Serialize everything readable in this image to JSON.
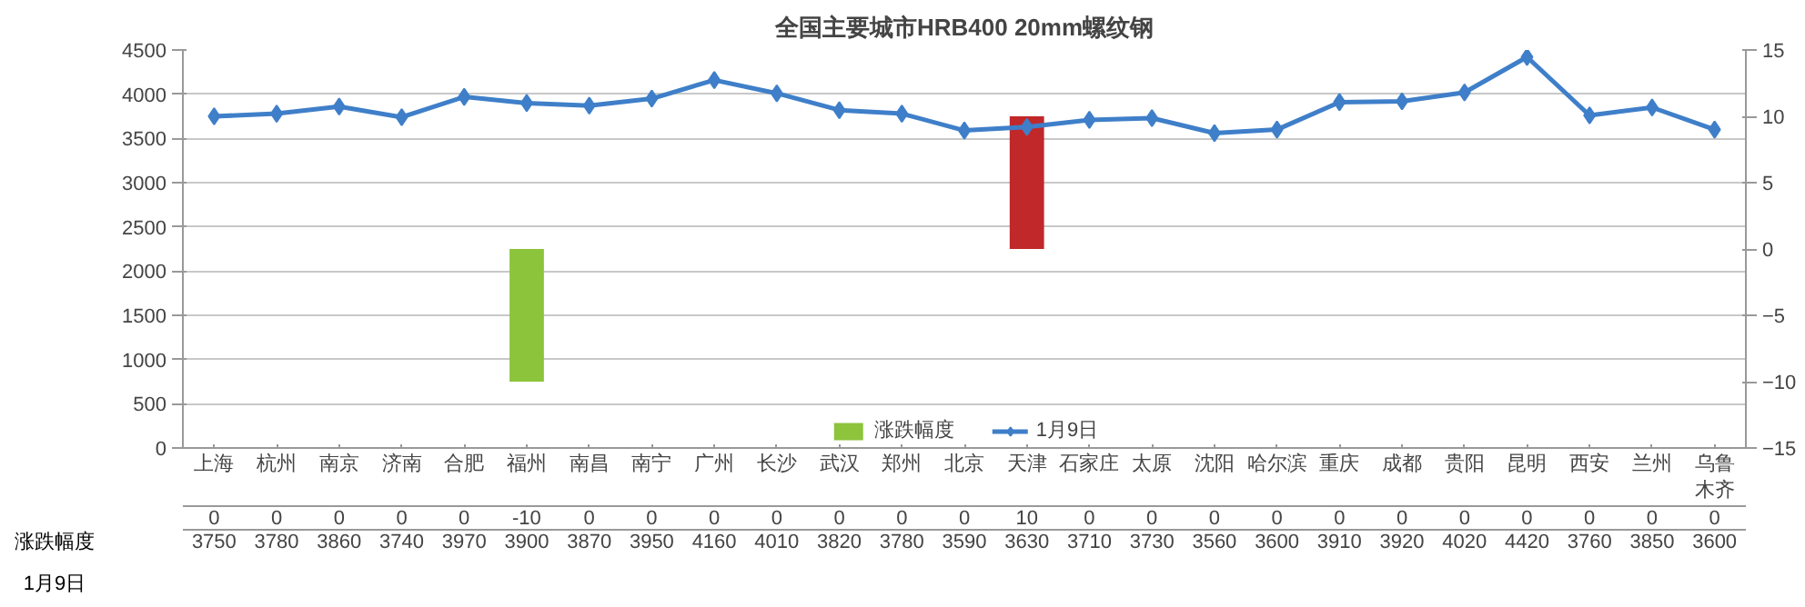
{
  "chart_data": {
    "type": "bar",
    "title": "全国主要城市HRB400 20mm螺纹钢",
    "categories": [
      "上海",
      "杭州",
      "南京",
      "济南",
      "合肥",
      "福州",
      "南昌",
      "南宁",
      "广州",
      "长沙",
      "武汉",
      "郑州",
      "北京",
      "天津",
      "石家庄",
      "太原",
      "沈阳",
      "哈尔滨",
      "重庆",
      "成都",
      "贵阳",
      "昆明",
      "西安",
      "兰州",
      "乌鲁木齐"
    ],
    "series": [
      {
        "name": "涨跌幅度",
        "axis": "y2",
        "color": "#8cc43c",
        "colors": [
          "#8cc43c",
          "#8cc43c",
          "#8cc43c",
          "#8cc43c",
          "#8cc43c",
          "#8cc43c",
          "#8cc43c",
          "#8cc43c",
          "#8cc43c",
          "#8cc43c",
          "#8cc43c",
          "#8cc43c",
          "#8cc43c",
          "#c0282a",
          "#8cc43c",
          "#8cc43c",
          "#8cc43c",
          "#8cc43c",
          "#8cc43c",
          "#8cc43c",
          "#8cc43c",
          "#8cc43c",
          "#8cc43c",
          "#8cc43c",
          "#8cc43c"
        ],
        "values": [
          0,
          0,
          0,
          0,
          0,
          -10,
          0,
          0,
          0,
          0,
          0,
          0,
          0,
          10,
          0,
          0,
          0,
          0,
          0,
          0,
          0,
          0,
          0,
          0,
          0
        ]
      },
      {
        "name": "1月9日",
        "type": "line",
        "color": "#3f7fc9",
        "values": [
          3750,
          3780,
          3860,
          3740,
          3970,
          3900,
          3870,
          3950,
          4160,
          4010,
          3820,
          3780,
          3590,
          3630,
          3710,
          3730,
          3560,
          3600,
          3910,
          3920,
          4020,
          4420,
          3760,
          3850,
          3600
        ]
      }
    ],
    "ylim": [
      0,
      4500
    ],
    "yticks": [
      0,
      500,
      1000,
      1500,
      2000,
      2500,
      3000,
      3500,
      4000,
      4500
    ],
    "y2lim": [
      -15,
      15
    ],
    "y2ticks": [
      -15,
      -10,
      -5,
      0,
      5,
      10,
      15
    ],
    "grid": "y",
    "legend": "bottom",
    "marker": "diamond",
    "data_labels": true
  }
}
